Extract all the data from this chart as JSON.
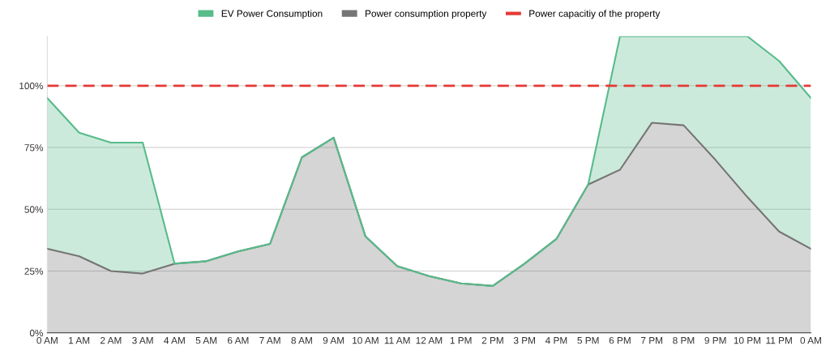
{
  "chart_data": {
    "type": "area",
    "stacked": true,
    "categories": [
      "0 AM",
      "1 AM",
      "2 AM",
      "3 AM",
      "4 AM",
      "5 AM",
      "6 AM",
      "7 AM",
      "8 AM",
      "9 AM",
      "10 AM",
      "11 AM",
      "12 AM",
      "1 PM",
      "2 PM",
      "3 PM",
      "4 PM",
      "5 PM",
      "6 PM",
      "7 PM",
      "8 PM",
      "9 PM",
      "10 PM",
      "11 PM",
      "0 AM"
    ],
    "series": [
      {
        "name": "Power consumption property",
        "color": "#757575",
        "values": [
          34,
          31,
          25,
          24,
          28,
          29,
          33,
          36,
          71,
          79,
          39,
          27,
          23,
          20,
          19,
          28,
          38,
          60,
          66,
          85,
          84,
          70,
          55,
          41,
          34
        ]
      },
      {
        "name": "EV Power Consumption",
        "color": "#57bb8a",
        "values": [
          61,
          50,
          52,
          53,
          0,
          0,
          0,
          0,
          0,
          0,
          0,
          0,
          0,
          0,
          0,
          0,
          0,
          0,
          54,
          35,
          36,
          50,
          65,
          69,
          61
        ]
      }
    ],
    "ylim": [
      0,
      120
    ],
    "yticks": [
      {
        "value": 0,
        "label": "0%"
      },
      {
        "value": 25,
        "label": "25%"
      },
      {
        "value": 50,
        "label": "50%"
      },
      {
        "value": 75,
        "label": "75%"
      },
      {
        "value": 100,
        "label": "100%"
      }
    ],
    "ref_lines": [
      {
        "axis": "y",
        "value": 100,
        "label": "Power capacitiy of the property",
        "color": "#e53935",
        "line_style": "dashed"
      }
    ],
    "grid": "y",
    "legend": "top"
  }
}
